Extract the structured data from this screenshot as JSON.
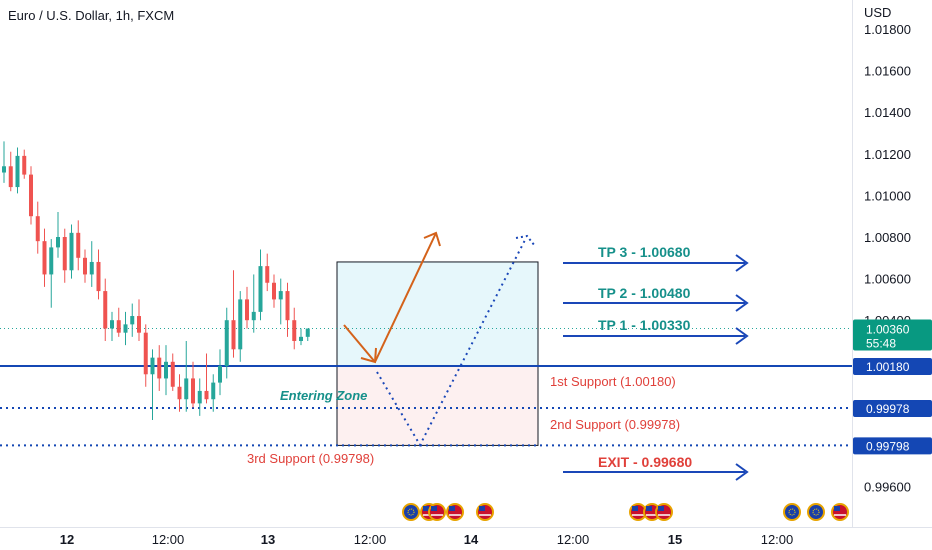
{
  "header": {
    "title": "Euro / U.S. Dollar, 1h, FXCM",
    "currency": "USD"
  },
  "price_axis": {
    "ticks": [
      "1.01800",
      "1.01600",
      "1.01400",
      "1.01200",
      "1.01000",
      "1.00800",
      "1.00600",
      "1.00400",
      "0.99600"
    ],
    "tags": [
      {
        "label": "1.00360",
        "sub": "55:48",
        "color": "#089981"
      },
      {
        "label": "1.00180",
        "color": "#1447b4"
      },
      {
        "label": "0.99978",
        "color": "#1447b4"
      },
      {
        "label": "0.99798",
        "color": "#1447b4"
      }
    ]
  },
  "time_axis": {
    "ticks": [
      {
        "label": "12",
        "bold": true
      },
      {
        "label": "12:00",
        "bold": false
      },
      {
        "label": "13",
        "bold": true
      },
      {
        "label": "12:00",
        "bold": false
      },
      {
        "label": "14",
        "bold": true
      },
      {
        "label": "12:00",
        "bold": false
      },
      {
        "label": "15",
        "bold": true
      },
      {
        "label": "12:00",
        "bold": false
      }
    ]
  },
  "annotations": {
    "tp3": "TP 3 - 1.00680",
    "tp2": "TP 2 - 1.00480",
    "tp1": "TP 1 - 1.00330",
    "exit": "EXIT - 0.99680",
    "support1": "1st Support (1.00180)",
    "support2": "2nd Support (0.99978)",
    "support3": "3rd Support (0.99798)",
    "entering_zone": "Entering Zone"
  },
  "colors": {
    "bull": "#26a69a",
    "bear": "#ef5350",
    "level_line": "#1447b4",
    "arrow_blue": "#1a47b8",
    "arrow_orange": "#d4621a",
    "text_teal": "#16908a",
    "text_red": "#e0403a",
    "entry_zone_fill": "#e6f7fb",
    "risk_zone_fill": "#fdf0f0"
  },
  "chart_data": {
    "type": "candlestick",
    "instrument": "Euro / U.S. Dollar",
    "timeframe": "1h",
    "source": "FXCM",
    "y_unit": "USD",
    "ylim": [
      0.995,
      1.0185
    ],
    "current_price": 1.0036,
    "candles": [
      {
        "o": 1.0111,
        "h": 1.0126,
        "l": 1.0106,
        "c": 1.0114
      },
      {
        "o": 1.0114,
        "h": 1.0121,
        "l": 1.0102,
        "c": 1.0104
      },
      {
        "o": 1.0104,
        "h": 1.0123,
        "l": 1.0101,
        "c": 1.0119
      },
      {
        "o": 1.0119,
        "h": 1.0122,
        "l": 1.0108,
        "c": 1.011
      },
      {
        "o": 1.011,
        "h": 1.0114,
        "l": 1.0086,
        "c": 1.009
      },
      {
        "o": 1.009,
        "h": 1.0097,
        "l": 1.0072,
        "c": 1.0078
      },
      {
        "o": 1.0078,
        "h": 1.0084,
        "l": 1.0056,
        "c": 1.0062
      },
      {
        "o": 1.0062,
        "h": 1.0079,
        "l": 1.0046,
        "c": 1.0075
      },
      {
        "o": 1.0075,
        "h": 1.0092,
        "l": 1.007,
        "c": 1.008
      },
      {
        "o": 1.008,
        "h": 1.0084,
        "l": 1.0058,
        "c": 1.0064
      },
      {
        "o": 1.0064,
        "h": 1.0086,
        "l": 1.006,
        "c": 1.0082
      },
      {
        "o": 1.0082,
        "h": 1.0088,
        "l": 1.0064,
        "c": 1.007
      },
      {
        "o": 1.007,
        "h": 1.0074,
        "l": 1.0058,
        "c": 1.0062
      },
      {
        "o": 1.0062,
        "h": 1.0078,
        "l": 1.0056,
        "c": 1.0068
      },
      {
        "o": 1.0068,
        "h": 1.0074,
        "l": 1.005,
        "c": 1.0054
      },
      {
        "o": 1.0054,
        "h": 1.006,
        "l": 1.003,
        "c": 1.0036
      },
      {
        "o": 1.0036,
        "h": 1.0044,
        "l": 1.003,
        "c": 1.004
      },
      {
        "o": 1.004,
        "h": 1.0046,
        "l": 1.0032,
        "c": 1.0034
      },
      {
        "o": 1.0034,
        "h": 1.0044,
        "l": 1.0028,
        "c": 1.0038
      },
      {
        "o": 1.0038,
        "h": 1.0048,
        "l": 1.0032,
        "c": 1.0042
      },
      {
        "o": 1.0042,
        "h": 1.005,
        "l": 1.003,
        "c": 1.0034
      },
      {
        "o": 1.0034,
        "h": 1.0038,
        "l": 1.0008,
        "c": 1.0014
      },
      {
        "o": 1.0014,
        "h": 1.0026,
        "l": 0.9992,
        "c": 1.0022
      },
      {
        "o": 1.0022,
        "h": 1.0028,
        "l": 1.0006,
        "c": 1.0012
      },
      {
        "o": 1.0012,
        "h": 1.0028,
        "l": 1.0004,
        "c": 1.002
      },
      {
        "o": 1.002,
        "h": 1.0024,
        "l": 1.0006,
        "c": 1.0008
      },
      {
        "o": 1.0008,
        "h": 1.0014,
        "l": 0.9996,
        "c": 1.0002
      },
      {
        "o": 1.0002,
        "h": 1.003,
        "l": 0.9996,
        "c": 1.0012
      },
      {
        "o": 1.0012,
        "h": 1.002,
        "l": 0.9998,
        "c": 1.0
      },
      {
        "o": 1.0,
        "h": 1.0012,
        "l": 0.9994,
        "c": 1.0006
      },
      {
        "o": 1.0006,
        "h": 1.0024,
        "l": 1.0,
        "c": 1.0002
      },
      {
        "o": 1.0002,
        "h": 1.0014,
        "l": 0.9996,
        "c": 1.001
      },
      {
        "o": 1.001,
        "h": 1.0026,
        "l": 1.0004,
        "c": 1.0018
      },
      {
        "o": 1.0018,
        "h": 1.0046,
        "l": 1.0012,
        "c": 1.004
      },
      {
        "o": 1.004,
        "h": 1.0064,
        "l": 1.0022,
        "c": 1.0026
      },
      {
        "o": 1.0026,
        "h": 1.0054,
        "l": 1.002,
        "c": 1.005
      },
      {
        "o": 1.005,
        "h": 1.0056,
        "l": 1.0036,
        "c": 1.004
      },
      {
        "o": 1.004,
        "h": 1.0062,
        "l": 1.0034,
        "c": 1.0044
      },
      {
        "o": 1.0044,
        "h": 1.0074,
        "l": 1.004,
        "c": 1.0066
      },
      {
        "o": 1.0066,
        "h": 1.0072,
        "l": 1.0054,
        "c": 1.0058
      },
      {
        "o": 1.0058,
        "h": 1.0062,
        "l": 1.0046,
        "c": 1.005
      },
      {
        "o": 1.005,
        "h": 1.006,
        "l": 1.0038,
        "c": 1.0054
      },
      {
        "o": 1.0054,
        "h": 1.0058,
        "l": 1.0032,
        "c": 1.004
      },
      {
        "o": 1.004,
        "h": 1.0046,
        "l": 1.0026,
        "c": 1.003
      },
      {
        "o": 1.003,
        "h": 1.0036,
        "l": 1.0028,
        "c": 1.0032
      },
      {
        "o": 1.0032,
        "h": 1.0036,
        "l": 1.003,
        "c": 1.0036
      }
    ],
    "levels": [
      {
        "name": "TP 3",
        "price": 1.0068
      },
      {
        "name": "TP 2",
        "price": 1.0048
      },
      {
        "name": "TP 1",
        "price": 1.0033
      },
      {
        "name": "1st Support",
        "price": 1.0018
      },
      {
        "name": "2nd Support",
        "price": 0.99978
      },
      {
        "name": "3rd Support",
        "price": 0.99798
      },
      {
        "name": "EXIT",
        "price": 0.9968
      }
    ],
    "position_box": {
      "upper_price": 1.0068,
      "entry_price": 1.0018,
      "lower_price": 0.99798
    }
  }
}
